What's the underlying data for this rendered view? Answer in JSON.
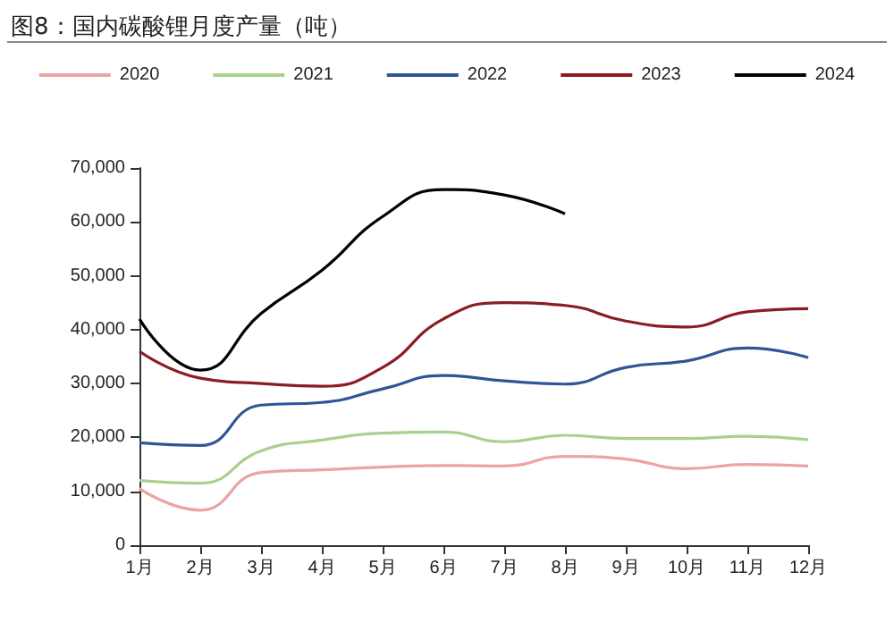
{
  "chart_data": {
    "type": "line",
    "title": "图8：国内碳酸锂月度产量（吨）",
    "categories": [
      "1月",
      "2月",
      "3月",
      "4月",
      "5月",
      "6月",
      "7月",
      "8月",
      "9月",
      "10月",
      "11月",
      "12月"
    ],
    "series": [
      {
        "name": "2020",
        "color": "#eba3a3",
        "values": [
          10500,
          6500,
          13500,
          14000,
          14500,
          14800,
          14700,
          16500,
          16000,
          14200,
          15000,
          14700
        ]
      },
      {
        "name": "2021",
        "color": "#a9d18e",
        "values": [
          12000,
          11500,
          17500,
          19500,
          20800,
          21000,
          19200,
          20400,
          19800,
          19800,
          20200,
          19600
        ]
      },
      {
        "name": "2022",
        "color": "#2f5597",
        "values": [
          19000,
          18500,
          26000,
          26500,
          29000,
          31500,
          30500,
          29900,
          33000,
          34200,
          36600,
          34800
        ]
      },
      {
        "name": "2023",
        "color": "#8b1c24",
        "values": [
          36000,
          31000,
          30000,
          29500,
          33000,
          42000,
          45000,
          44500,
          41600,
          40500,
          43300,
          43900
        ]
      },
      {
        "name": "2024",
        "color": "#000000",
        "values": [
          42000,
          32500,
          43000,
          51000,
          61000,
          66000,
          65000,
          61500,
          null,
          null,
          null,
          null
        ]
      }
    ],
    "ylim": [
      0,
      70000
    ],
    "yticks": [
      0,
      {
        "value": 10000,
        "label": "10,000"
      },
      {
        "value": 20000,
        "label": "20,000"
      },
      {
        "value": 30000,
        "label": "30,000"
      },
      {
        "value": 40000,
        "label": "40,000"
      },
      {
        "value": 50000,
        "label": "50,000"
      },
      {
        "value": 60000,
        "label": "60,000"
      },
      {
        "value": 70000,
        "label": "70,000"
      }
    ],
    "grid": false,
    "legend": "top",
    "marker": "none",
    "line_style": "solid"
  }
}
